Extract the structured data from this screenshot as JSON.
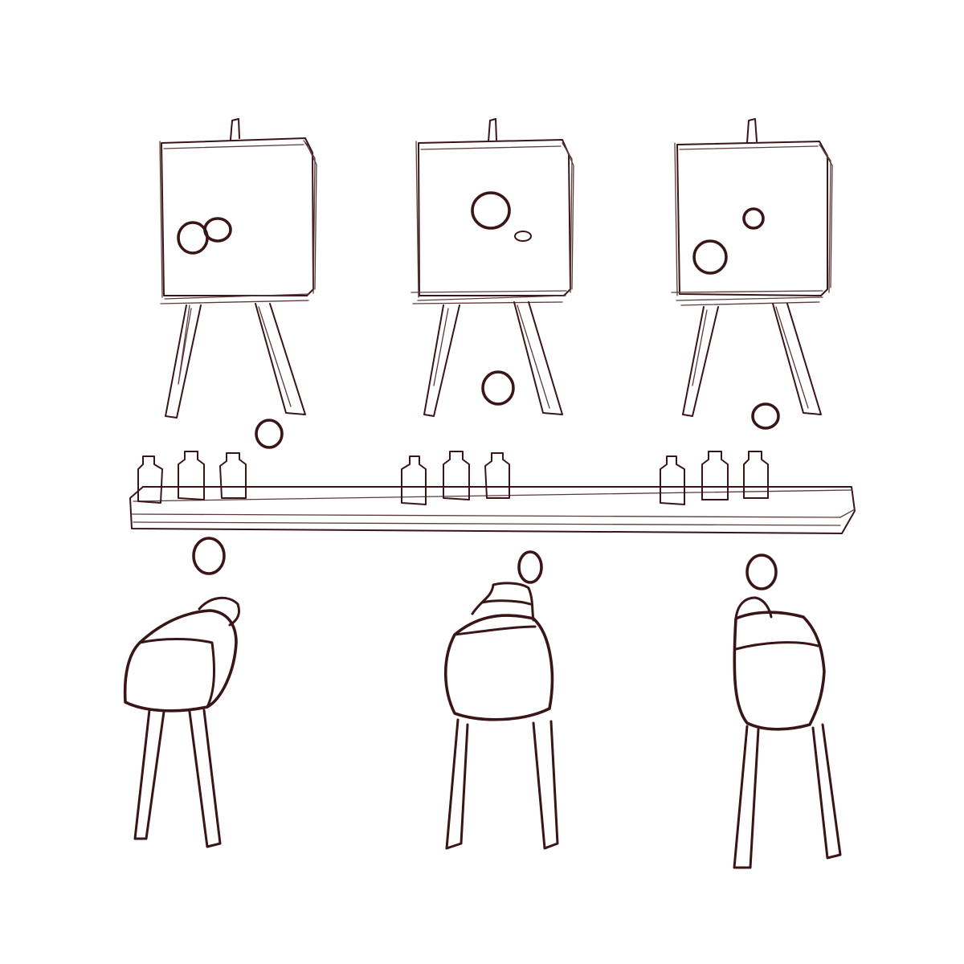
{
  "palette": {
    "background": "#ffffff",
    "ink": "#3a1518",
    "ink_light": "#5a3a3c"
  },
  "scene": {
    "easels": 3,
    "bottles_per_group": 3,
    "stools": 3
  }
}
